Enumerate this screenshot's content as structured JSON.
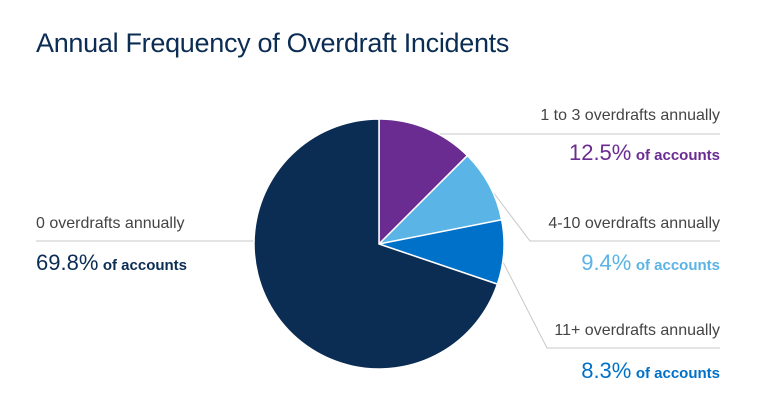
{
  "chart_data": {
    "type": "pie",
    "title": "Annual Frequency of Overdraft Incidents",
    "start": "top",
    "direction": "clockwise",
    "slices": [
      {
        "label": "1 to 3 overdrafts annually",
        "value": 12.5,
        "display": "12.5%",
        "suffix": "of accounts",
        "color": "#6a2c91"
      },
      {
        "label": "4-10 overdrafts annually",
        "value": 9.4,
        "display": "9.4%",
        "suffix": "of accounts",
        "color": "#5ab4e5"
      },
      {
        "label": "11+ overdrafts annually",
        "value": 8.3,
        "display": "8.3%",
        "suffix": "of accounts",
        "color": "#0071c8"
      },
      {
        "label": "0 overdrafts annually",
        "value": 69.8,
        "display": "69.8%",
        "suffix": "of accounts",
        "color": "#0b2d54"
      }
    ]
  }
}
